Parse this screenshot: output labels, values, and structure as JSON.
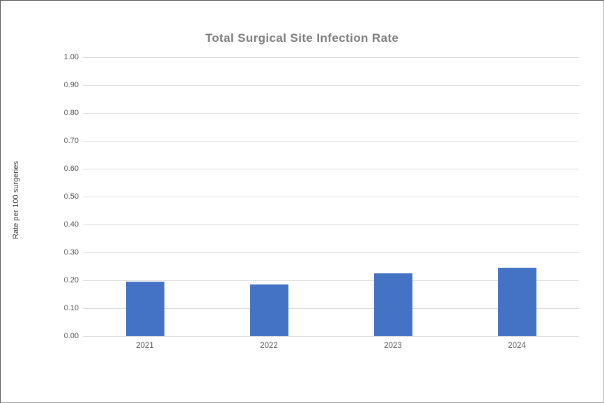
{
  "chart_data": {
    "type": "bar",
    "title": "Total Surgical Site Infection Rate",
    "xlabel": "",
    "ylabel": "Rate per 100 surgeries",
    "categories": [
      "2021",
      "2022",
      "2023",
      "2024"
    ],
    "values": [
      0.195,
      0.185,
      0.225,
      0.245
    ],
    "ylim": [
      0,
      1.0
    ],
    "ytick_step": 0.1,
    "ytick_format_decimals": 2,
    "grid": "horizontal",
    "legend": "none",
    "bar_color": "#4472c4",
    "gridline_color": "#dcdcdc",
    "title_color": "#7c7c7c",
    "tick_label_color": "#595959",
    "axis_title_color": "#404040",
    "background_color": "#ffffff"
  }
}
